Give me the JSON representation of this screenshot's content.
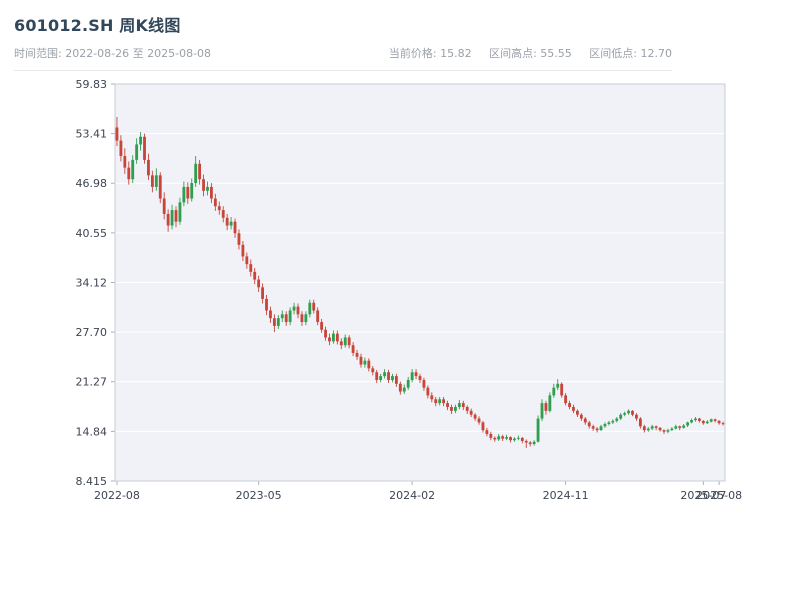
{
  "header": {
    "title": "601012.SH 周K线图",
    "time_range": "时间范围: 2022-08-26 至 2025-08-08",
    "stats": {
      "current": "当前价格: 15.82",
      "high": "区间高点: 55.55",
      "low": "区间低点: 12.70"
    }
  },
  "chart_data": {
    "type": "candlestick",
    "title": "601012.SH 周K线图",
    "symbol": "601012.SH",
    "interval": "week",
    "start_date": "2022-08-26",
    "end_date": "2025-08-08",
    "current_price": 15.82,
    "range_high": 55.55,
    "range_low": 12.7,
    "ylim": [
      8.415,
      59.83
    ],
    "yticks": [
      "59.83",
      "53.41",
      "46.98",
      "40.55",
      "34.12",
      "27.70",
      "21.27",
      "14.84",
      "8.415"
    ],
    "xticks": [
      {
        "label": "2022-08",
        "index": 0
      },
      {
        "label": "2023-05",
        "index": 36
      },
      {
        "label": "2024-02",
        "index": 75
      },
      {
        "label": "2024-11",
        "index": 114
      },
      {
        "label": "2025-07",
        "index": 149
      },
      {
        "label": "2025-08",
        "index": 153
      }
    ],
    "colors": {
      "up": "#2f9e4f",
      "down": "#c8453a",
      "plot_bg": "#f0f2f7",
      "grid": "#ffffff",
      "spine": "#c9ccd4"
    },
    "candles": [
      [
        54.2,
        55.55,
        51.8,
        52.5
      ],
      [
        52.5,
        53.2,
        49.8,
        50.5
      ],
      [
        50.5,
        51.5,
        48.2,
        49.0
      ],
      [
        49.0,
        49.8,
        46.8,
        47.5
      ],
      [
        47.5,
        50.6,
        47.0,
        50.0
      ],
      [
        50.0,
        52.8,
        49.5,
        52.0
      ],
      [
        52.0,
        53.6,
        51.2,
        53.0
      ],
      [
        53.0,
        53.4,
        49.5,
        50.0
      ],
      [
        50.0,
        50.8,
        47.4,
        48.0
      ],
      [
        48.0,
        48.6,
        45.8,
        46.5
      ],
      [
        46.5,
        48.9,
        46.0,
        48.0
      ],
      [
        48.0,
        48.4,
        44.4,
        45.0
      ],
      [
        45.0,
        45.8,
        42.3,
        43.0
      ],
      [
        43.0,
        43.6,
        40.7,
        41.5
      ],
      [
        41.5,
        44.2,
        41.0,
        43.5
      ],
      [
        43.5,
        44.0,
        41.3,
        42.0
      ],
      [
        42.0,
        45.1,
        41.6,
        44.5
      ],
      [
        44.5,
        47.2,
        44.0,
        46.5
      ],
      [
        46.5,
        47.1,
        44.3,
        45.0
      ],
      [
        45.0,
        47.6,
        44.6,
        47.0
      ],
      [
        47.0,
        50.5,
        46.5,
        49.5
      ],
      [
        49.5,
        50.0,
        46.8,
        47.5
      ],
      [
        47.5,
        48.1,
        45.3,
        46.0
      ],
      [
        46.0,
        47.2,
        45.4,
        46.5
      ],
      [
        46.5,
        47.0,
        44.4,
        45.0
      ],
      [
        45.0,
        45.6,
        43.4,
        44.0
      ],
      [
        44.0,
        44.6,
        42.9,
        43.5
      ],
      [
        43.5,
        44.0,
        41.9,
        42.5
      ],
      [
        42.5,
        43.0,
        40.9,
        41.5
      ],
      [
        41.5,
        42.6,
        41.0,
        42.0
      ],
      [
        42.0,
        42.4,
        39.9,
        40.5
      ],
      [
        40.5,
        41.0,
        38.4,
        39.0
      ],
      [
        39.0,
        39.5,
        36.9,
        37.5
      ],
      [
        37.5,
        38.0,
        35.9,
        36.5
      ],
      [
        36.5,
        37.1,
        34.9,
        35.5
      ],
      [
        35.5,
        36.0,
        33.9,
        34.5
      ],
      [
        34.5,
        35.0,
        32.9,
        33.5
      ],
      [
        33.5,
        34.0,
        31.4,
        32.0
      ],
      [
        32.0,
        32.5,
        29.9,
        30.5
      ],
      [
        30.5,
        31.0,
        28.9,
        29.5
      ],
      [
        29.5,
        30.0,
        27.7,
        28.5
      ],
      [
        28.5,
        29.9,
        28.1,
        29.5
      ],
      [
        29.5,
        30.5,
        29.0,
        30.0
      ],
      [
        30.0,
        30.4,
        28.5,
        29.0
      ],
      [
        29.0,
        30.9,
        28.6,
        30.5
      ],
      [
        30.5,
        31.5,
        30.0,
        31.0
      ],
      [
        31.0,
        31.4,
        29.5,
        30.0
      ],
      [
        30.0,
        30.4,
        28.5,
        29.0
      ],
      [
        29.0,
        30.4,
        28.6,
        30.0
      ],
      [
        30.0,
        31.9,
        29.6,
        31.5
      ],
      [
        31.5,
        31.9,
        30.1,
        30.5
      ],
      [
        30.5,
        30.9,
        28.6,
        29.0
      ],
      [
        29.0,
        29.4,
        27.6,
        28.0
      ],
      [
        28.0,
        28.4,
        26.6,
        27.0
      ],
      [
        27.0,
        27.5,
        26.0,
        26.5
      ],
      [
        26.5,
        27.9,
        26.2,
        27.5
      ],
      [
        27.5,
        27.9,
        26.1,
        26.5
      ],
      [
        26.5,
        26.9,
        25.5,
        26.0
      ],
      [
        26.0,
        27.4,
        25.7,
        27.0
      ],
      [
        27.0,
        27.3,
        25.6,
        26.0
      ],
      [
        26.0,
        26.4,
        24.6,
        25.0
      ],
      [
        25.0,
        25.4,
        24.1,
        24.5
      ],
      [
        24.5,
        24.9,
        23.1,
        23.5
      ],
      [
        23.5,
        24.4,
        23.1,
        24.0
      ],
      [
        24.0,
        24.3,
        22.6,
        23.0
      ],
      [
        23.0,
        23.3,
        22.1,
        22.5
      ],
      [
        22.5,
        22.8,
        21.1,
        21.5
      ],
      [
        21.5,
        22.3,
        21.2,
        22.0
      ],
      [
        22.0,
        22.9,
        21.7,
        22.5
      ],
      [
        22.5,
        22.8,
        21.1,
        21.5
      ],
      [
        21.5,
        22.3,
        21.2,
        22.0
      ],
      [
        22.0,
        22.3,
        20.6,
        21.0
      ],
      [
        21.0,
        21.3,
        19.6,
        20.0
      ],
      [
        20.0,
        20.9,
        19.7,
        20.5
      ],
      [
        20.5,
        21.9,
        20.2,
        21.5
      ],
      [
        21.5,
        22.9,
        21.2,
        22.5
      ],
      [
        22.5,
        22.9,
        21.6,
        22.0
      ],
      [
        22.0,
        22.3,
        21.1,
        21.5
      ],
      [
        21.5,
        21.8,
        20.1,
        20.5
      ],
      [
        20.5,
        20.8,
        19.1,
        19.5
      ],
      [
        19.5,
        19.9,
        18.6,
        19.0
      ],
      [
        19.0,
        19.3,
        18.1,
        18.5
      ],
      [
        18.5,
        19.3,
        18.2,
        19.0
      ],
      [
        19.0,
        19.3,
        18.1,
        18.5
      ],
      [
        18.5,
        18.8,
        17.6,
        18.0
      ],
      [
        18.0,
        18.3,
        17.1,
        17.5
      ],
      [
        17.5,
        18.3,
        17.2,
        18.0
      ],
      [
        18.0,
        18.9,
        17.7,
        18.5
      ],
      [
        18.5,
        18.8,
        17.6,
        18.0
      ],
      [
        18.0,
        18.2,
        17.1,
        17.5
      ],
      [
        17.5,
        17.8,
        16.7,
        17.0
      ],
      [
        17.0,
        17.2,
        16.2,
        16.5
      ],
      [
        16.5,
        16.8,
        15.7,
        16.0
      ],
      [
        16.0,
        16.2,
        14.7,
        15.0
      ],
      [
        15.0,
        15.3,
        14.2,
        14.5
      ],
      [
        14.5,
        14.8,
        13.7,
        14.0
      ],
      [
        14.0,
        14.2,
        13.5,
        13.8
      ],
      [
        13.8,
        14.5,
        13.6,
        14.2
      ],
      [
        14.2,
        14.4,
        13.6,
        13.9
      ],
      [
        13.9,
        14.4,
        13.7,
        14.1
      ],
      [
        14.1,
        14.2,
        13.4,
        13.7
      ],
      [
        13.7,
        14.1,
        13.5,
        13.9
      ],
      [
        13.9,
        14.3,
        13.7,
        14.0
      ],
      [
        14.0,
        14.1,
        13.3,
        13.6
      ],
      [
        13.6,
        13.8,
        12.7,
        13.4
      ],
      [
        13.4,
        13.6,
        12.9,
        13.2
      ],
      [
        13.2,
        13.7,
        13.0,
        13.5
      ],
      [
        13.5,
        16.9,
        13.4,
        16.5
      ],
      [
        16.5,
        19.0,
        16.2,
        18.5
      ],
      [
        18.5,
        18.8,
        17.0,
        17.5
      ],
      [
        17.5,
        19.9,
        17.3,
        19.5
      ],
      [
        19.5,
        21.0,
        19.2,
        20.5
      ],
      [
        20.5,
        21.6,
        20.2,
        21.0
      ],
      [
        21.0,
        21.2,
        19.2,
        19.5
      ],
      [
        19.5,
        19.8,
        18.2,
        18.5
      ],
      [
        18.5,
        18.8,
        17.7,
        18.0
      ],
      [
        18.0,
        18.3,
        17.2,
        17.5
      ],
      [
        17.5,
        17.7,
        16.7,
        17.0
      ],
      [
        17.0,
        17.2,
        16.2,
        16.5
      ],
      [
        16.5,
        16.7,
        15.7,
        16.0
      ],
      [
        16.0,
        16.2,
        15.2,
        15.5
      ],
      [
        15.5,
        15.7,
        14.9,
        15.2
      ],
      [
        15.2,
        15.4,
        14.7,
        15.0
      ],
      [
        15.0,
        15.7,
        14.9,
        15.5
      ],
      [
        15.5,
        16.0,
        15.3,
        15.8
      ],
      [
        15.8,
        16.2,
        15.6,
        16.0
      ],
      [
        16.0,
        16.4,
        15.8,
        16.2
      ],
      [
        16.2,
        16.7,
        16.0,
        16.5
      ],
      [
        16.5,
        17.2,
        16.3,
        17.0
      ],
      [
        17.0,
        17.4,
        16.8,
        17.2
      ],
      [
        17.2,
        17.7,
        17.0,
        17.5
      ],
      [
        17.5,
        17.6,
        16.8,
        17.0
      ],
      [
        17.0,
        17.2,
        16.2,
        16.5
      ],
      [
        16.5,
        16.7,
        15.2,
        15.5
      ],
      [
        15.5,
        15.7,
        14.7,
        15.0
      ],
      [
        15.0,
        15.4,
        14.8,
        15.2
      ],
      [
        15.2,
        15.7,
        15.0,
        15.5
      ],
      [
        15.5,
        15.6,
        15.0,
        15.3
      ],
      [
        15.3,
        15.4,
        14.8,
        15.0
      ],
      [
        15.0,
        15.1,
        14.5,
        14.8
      ],
      [
        14.8,
        15.2,
        14.6,
        15.0
      ],
      [
        15.0,
        15.4,
        14.9,
        15.2
      ],
      [
        15.2,
        15.7,
        15.1,
        15.5
      ],
      [
        15.5,
        15.6,
        15.0,
        15.3
      ],
      [
        15.3,
        15.8,
        15.2,
        15.6
      ],
      [
        15.6,
        16.1,
        15.4,
        16.0
      ],
      [
        16.0,
        16.5,
        15.9,
        16.3
      ],
      [
        16.3,
        16.7,
        16.1,
        16.5
      ],
      [
        16.5,
        16.6,
        16.0,
        16.2
      ],
      [
        16.2,
        16.3,
        15.7,
        15.9
      ],
      [
        15.9,
        16.3,
        15.8,
        16.1
      ],
      [
        16.1,
        16.5,
        16.0,
        16.4
      ],
      [
        16.4,
        16.5,
        16.0,
        16.2
      ],
      [
        16.2,
        16.3,
        15.7,
        15.9
      ],
      [
        15.9,
        16.1,
        15.6,
        15.82
      ]
    ]
  }
}
